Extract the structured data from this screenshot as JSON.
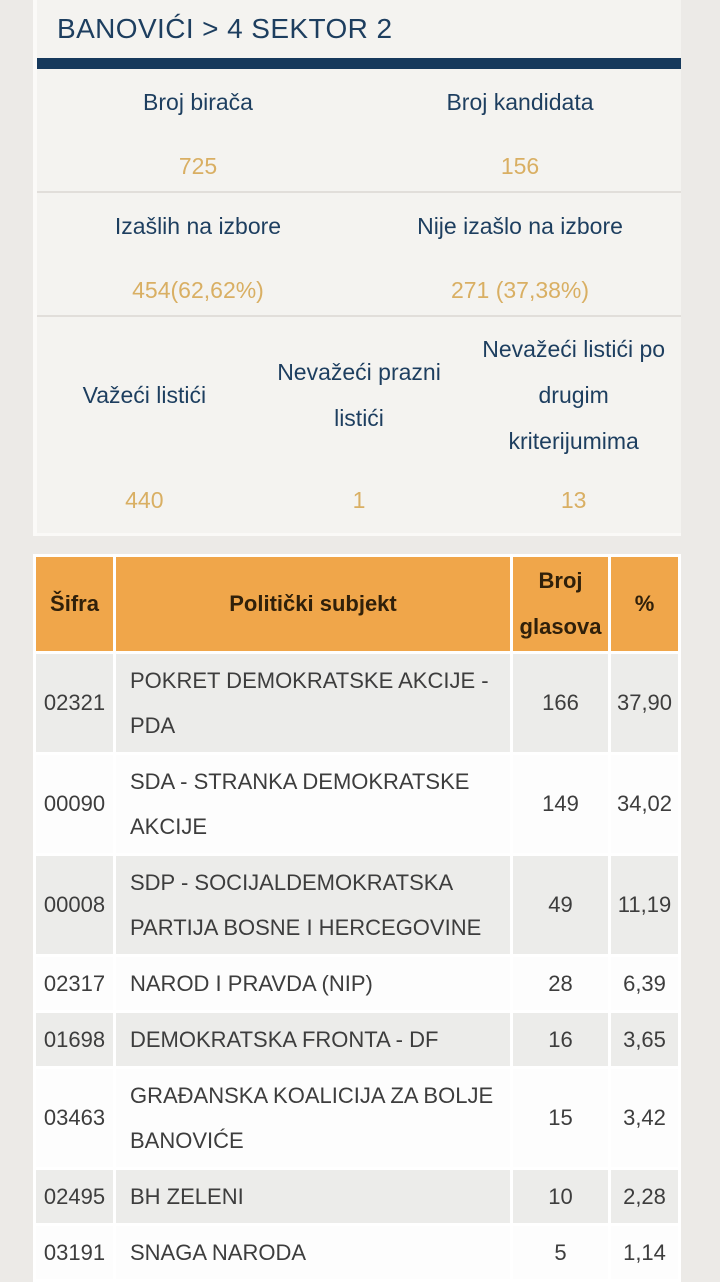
{
  "header": {
    "title": "BANOVIĆI > 4 SEKTOR 2"
  },
  "colors": {
    "navy": "#16395c",
    "navy_text": "#1d3e5f",
    "gold_value": "#d9af63",
    "table_header_orange": "#f0a64a",
    "table_header_text": "#30200a",
    "row_gray": "#ececea",
    "row_white": "#fdfdfd",
    "page_background": "#eceae7",
    "card_background": "#f4f3f0"
  },
  "stats": {
    "rows": [
      {
        "cells": [
          {
            "label": "Broj birača",
            "value": "725"
          },
          {
            "label": "Broj kandidata",
            "value": "156"
          }
        ]
      },
      {
        "cells": [
          {
            "label": "Izašlih na izbore",
            "value": "454(62,62%)"
          },
          {
            "label": "Nije izašlo na izbore",
            "value": "271 (37,38%)"
          }
        ]
      },
      {
        "cells": [
          {
            "label": "Važeći listići",
            "value": "440"
          },
          {
            "label": "Nevažeći prazni\nlistići",
            "value": "1"
          },
          {
            "label": "Nevažeći listići po\ndrugim\nkriterijumima",
            "value": "13"
          }
        ]
      }
    ]
  },
  "table": {
    "headers": [
      "Šifra",
      "Politički subjekt",
      "Broj glasova",
      "%"
    ],
    "rows": [
      {
        "code": "02321",
        "party": "POKRET DEMOKRATSKE AKCIJE - PDA",
        "votes": "166",
        "percent": "37,90"
      },
      {
        "code": "00090",
        "party": "SDA - STRANKA DEMOKRATSKE\nAKCIJE",
        "votes": "149",
        "percent": "34,02"
      },
      {
        "code": "00008",
        "party": "SDP - SOCIJALDEMOKRATSKA\nPARTIJA BOSNE I HERCEGOVINE",
        "votes": "49",
        "percent": "11,19"
      },
      {
        "code": "02317",
        "party": "NAROD I PRAVDA (NIP)",
        "votes": "28",
        "percent": "6,39"
      },
      {
        "code": "01698",
        "party": "DEMOKRATSKA FRONTA - DF",
        "votes": "16",
        "percent": "3,65"
      },
      {
        "code": "03463",
        "party": "GRAĐANSKA KOALICIJA ZA BOLJE\nBANOVIĆE",
        "votes": "15",
        "percent": "3,42"
      },
      {
        "code": "02495",
        "party": "BH ZELENI",
        "votes": "10",
        "percent": "2,28"
      },
      {
        "code": "03191",
        "party": "SNAGA NARODA",
        "votes": "5",
        "percent": "1,14"
      }
    ]
  }
}
